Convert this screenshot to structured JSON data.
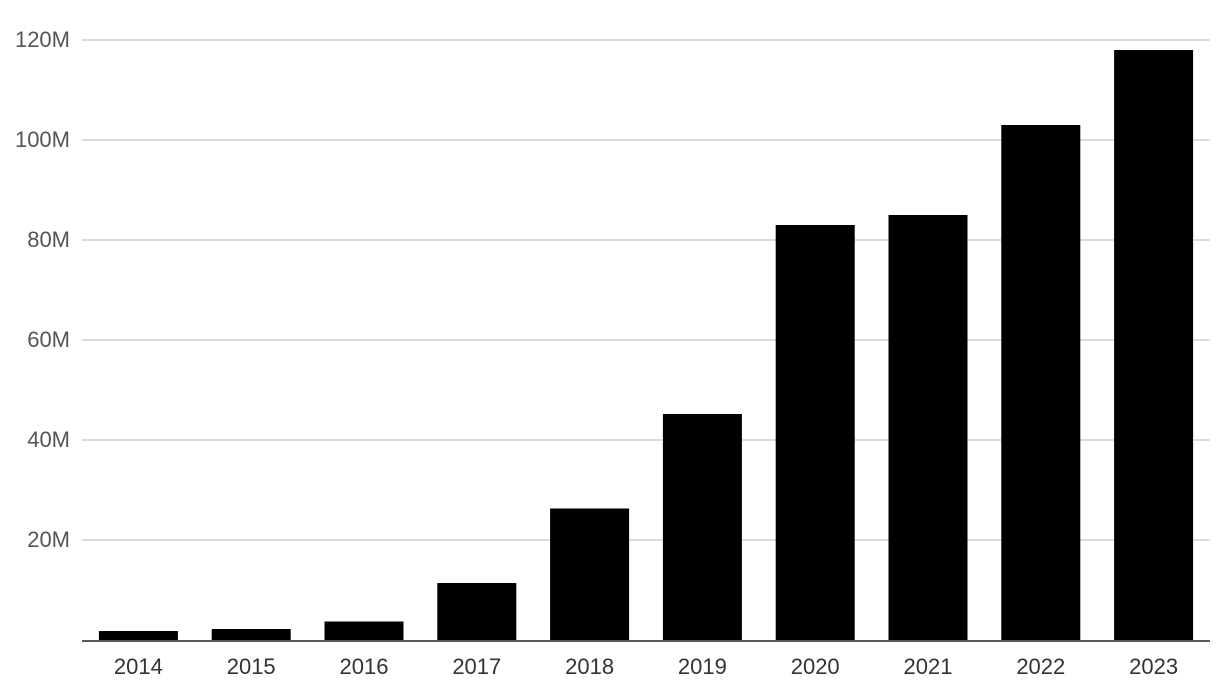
{
  "chart_data": {
    "type": "bar",
    "title": "",
    "xlabel": "",
    "ylabel": "",
    "categories": [
      "2014",
      "2015",
      "2016",
      "2017",
      "2018",
      "2019",
      "2020",
      "2021",
      "2022",
      "2023"
    ],
    "values": [
      1.8,
      2.2,
      3.7,
      11.4,
      26.3,
      45.2,
      83.0,
      85.0,
      103.0,
      118.0
    ],
    "value_unit": "M",
    "ylim": [
      0,
      120
    ],
    "yticks": [
      20,
      40,
      60,
      80,
      100,
      120
    ],
    "ytick_labels": [
      "20M",
      "40M",
      "60M",
      "80M",
      "100M",
      "120M"
    ],
    "grid": true,
    "bar_color": "#000000",
    "grid_color": "#d0d0d0"
  }
}
